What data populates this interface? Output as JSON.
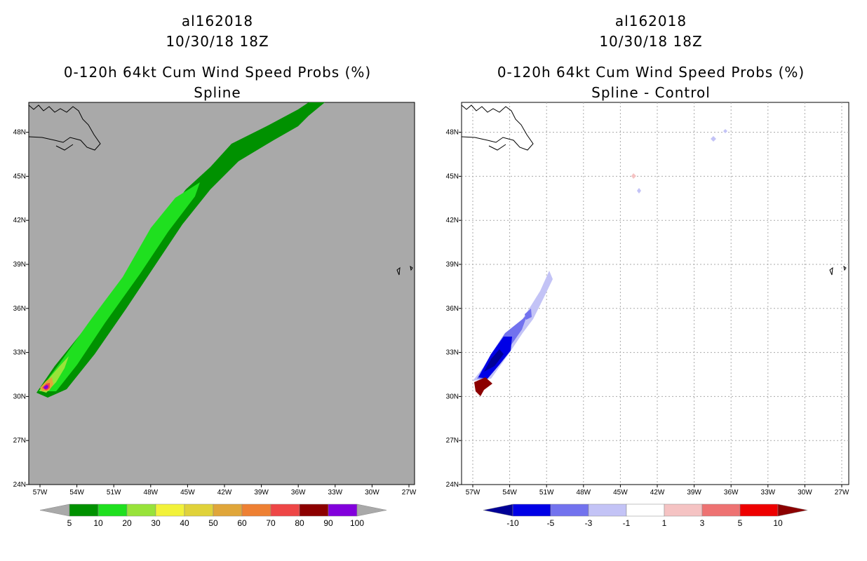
{
  "chart_data": [
    {
      "type": "heatmap",
      "storm_id": "al162018",
      "datetime": "10/30/18 18Z",
      "title": "0-120h 64kt Cum Wind Speed Probs (%)",
      "subtitle": "Spline",
      "lat_ticks": [
        "24N",
        "27N",
        "30N",
        "33N",
        "36N",
        "39N",
        "42N",
        "45N",
        "48N"
      ],
      "lon_ticks": [
        "57W",
        "54W",
        "51W",
        "48W",
        "45W",
        "42W",
        "39W",
        "36W",
        "33W",
        "30W",
        "27W"
      ],
      "lat_range": [
        24,
        50
      ],
      "lon_range": [
        -58.0,
        -27
      ],
      "colorbar": {
        "labels": [
          "5",
          "10",
          "20",
          "30",
          "40",
          "50",
          "60",
          "70",
          "80",
          "90",
          "100"
        ],
        "colors": [
          "#009100",
          "#1fe01f",
          "#98e33a",
          "#f2f23a",
          "#e0d23a",
          "#e0a63a",
          "#ee8033",
          "#ee4646",
          "#8c0000",
          "#8200dc"
        ],
        "min_color": "#a9a9a9",
        "max_color": "#a9a9a9"
      },
      "track": [
        {
          "lat": 30.3,
          "lon": -56.6,
          "value": 90
        },
        {
          "lat": 31.2,
          "lon": -56.0,
          "value": 40
        },
        {
          "lat": 33.0,
          "lon": -54.6,
          "value": 20
        },
        {
          "lat": 36.0,
          "lon": -52.5,
          "value": 20
        },
        {
          "lat": 39.0,
          "lon": -50.3,
          "value": 20
        },
        {
          "lat": 42.0,
          "lon": -48.0,
          "value": 20
        },
        {
          "lat": 44.5,
          "lon": -45.5,
          "value": 10
        },
        {
          "lat": 47.0,
          "lon": -41.5,
          "value": 10
        },
        {
          "lat": 49.8,
          "lon": -37.5,
          "value": 10
        }
      ]
    },
    {
      "type": "heatmap",
      "storm_id": "al162018",
      "datetime": "10/30/18 18Z",
      "title": "0-120h 64kt Cum Wind Speed Probs (%)",
      "subtitle": "Spline - Control",
      "lat_ticks": [
        "24N",
        "27N",
        "30N",
        "33N",
        "36N",
        "39N",
        "42N",
        "45N",
        "48N"
      ],
      "lon_ticks": [
        "57W",
        "54W",
        "51W",
        "48W",
        "45W",
        "42W",
        "39W",
        "36W",
        "33W",
        "30W",
        "27W"
      ],
      "lat_range": [
        24,
        50
      ],
      "lon_range": [
        -58.0,
        -27
      ],
      "colorbar": {
        "labels": [
          "-10",
          "-5",
          "-3",
          "-1",
          "1",
          "3",
          "5",
          "10"
        ],
        "colors": [
          "#0000e6",
          "#7272ee",
          "#c3c3f6",
          "#ffffff",
          "#f5c3c3",
          "#ee7272",
          "#ee0000"
        ],
        "min_color": "#000096",
        "max_color": "#8c0000"
      },
      "features": [
        {
          "lat": 30.7,
          "lon": -57.0,
          "value": 12
        },
        {
          "lat": 32.5,
          "lon": -55.5,
          "value": -12
        },
        {
          "lat": 34.0,
          "lon": -54.5,
          "value": -6
        },
        {
          "lat": 36.5,
          "lon": -53.0,
          "value": -2
        },
        {
          "lat": 48.0,
          "lon": -36.0,
          "value": -2
        },
        {
          "lat": 45.0,
          "lon": -44.8,
          "value": 2
        },
        {
          "lat": 44.0,
          "lon": -44.5,
          "value": -2
        }
      ]
    }
  ]
}
